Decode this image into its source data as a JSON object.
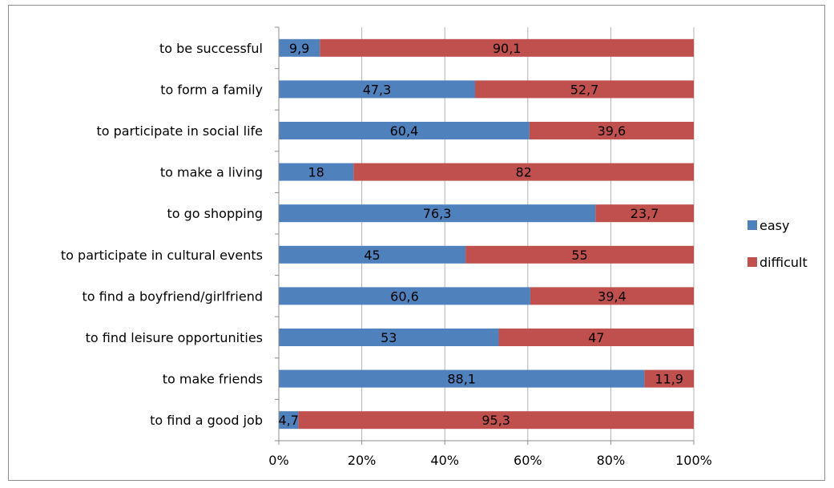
{
  "chart_data": {
    "type": "bar",
    "orientation": "horizontal",
    "stacked": "percent",
    "categories": [
      "to be successful",
      "to form a family",
      "to participate in social life",
      "to make a living",
      "to go shopping",
      "to participate in cultural events",
      "to find a boyfriend/girlfriend",
      "to find leisure opportunities",
      "to make friends",
      "to find a good job"
    ],
    "series": [
      {
        "name": "easy",
        "color": "#4F81BD",
        "values": [
          9.9,
          47.3,
          60.4,
          18,
          76.3,
          45,
          60.6,
          53,
          88.1,
          4.7
        ],
        "labels": [
          "9,9",
          "47,3",
          "60,4",
          "18",
          "76,3",
          "45",
          "60,6",
          "53",
          "88,1",
          "4,7"
        ]
      },
      {
        "name": "difficult",
        "color": "#C0504D",
        "values": [
          90.1,
          52.7,
          39.6,
          82,
          23.7,
          55,
          39.4,
          47,
          11.9,
          95.3
        ],
        "labels": [
          "90,1",
          "52,7",
          "39,6",
          "82",
          "23,7",
          "55",
          "39,4",
          "47",
          "11,9",
          "95,3"
        ]
      }
    ],
    "xlim": [
      0,
      100
    ],
    "xticks": [
      "0%",
      "20%",
      "40%",
      "60%",
      "80%",
      "100%"
    ],
    "grid": "vertical",
    "legend": "right",
    "title": "",
    "xlabel": "",
    "ylabel": ""
  }
}
